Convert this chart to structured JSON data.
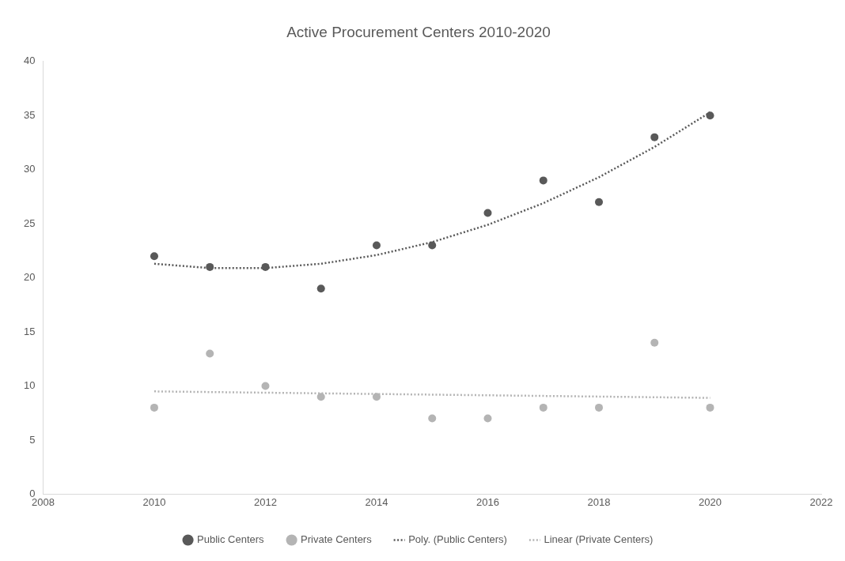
{
  "chart_data": {
    "type": "scatter",
    "title": "Active Procurement Centers 2010-2020",
    "x": [
      2010,
      2011,
      2012,
      2013,
      2014,
      2015,
      2016,
      2017,
      2018,
      2019,
      2020
    ],
    "series": [
      {
        "name": "Public Centers",
        "color": "#595959",
        "marker": "circle",
        "values": [
          22,
          21,
          21,
          19,
          23,
          23,
          26,
          29,
          27,
          33,
          35
        ]
      },
      {
        "name": "Private Centers",
        "color": "#b4b4b4",
        "marker": "circle",
        "values": [
          8,
          13,
          10,
          9,
          9,
          7,
          7,
          8,
          8,
          14,
          8
        ]
      },
      {
        "name": "Poly. (Public Centers)",
        "type": "line",
        "color": "#595959",
        "marker": "none",
        "line_style": "dotted",
        "values": [
          21.3,
          20.9,
          20.9,
          21.3,
          22.1,
          23.3,
          24.9,
          26.9,
          29.3,
          32.1,
          35.3
        ]
      },
      {
        "name": "Linear (Private Centers)",
        "type": "line",
        "color": "#b4b4b4",
        "marker": "none",
        "line_style": "dotted",
        "x": [
          2010,
          2020
        ],
        "values": [
          9.5,
          8.9
        ]
      }
    ],
    "xlim": [
      2008,
      2022
    ],
    "xticks": [
      2008,
      2010,
      2012,
      2014,
      2016,
      2018,
      2020,
      2022
    ],
    "ylim": [
      0,
      40
    ],
    "yticks": [
      0,
      5,
      10,
      15,
      20,
      25,
      30,
      35,
      40
    ],
    "grid": false,
    "legend": "bottom"
  }
}
